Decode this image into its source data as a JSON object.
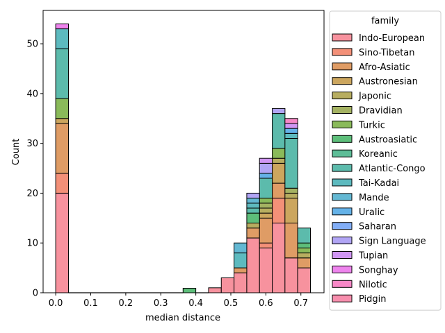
{
  "chart_data": {
    "type": "bar",
    "stacked": true,
    "xlabel": "median distance",
    "ylabel": "Count",
    "xlim": [
      -0.036,
      0.766
    ],
    "ylim": [
      0,
      56.7
    ],
    "xticks": [
      "0.0",
      "0.1",
      "0.2",
      "0.3",
      "0.4",
      "0.5",
      "0.6",
      "0.7"
    ],
    "yticks": [
      "0",
      "10",
      "20",
      "30",
      "40",
      "50"
    ],
    "grid": false,
    "legend": {
      "title": "family",
      "placement": "outside-right"
    },
    "bin_width": 0.0364,
    "bin_starts": [
      0.0,
      0.0364,
      0.0727,
      0.1091,
      0.1455,
      0.1818,
      0.2182,
      0.2545,
      0.2909,
      0.3273,
      0.3636,
      0.4,
      0.4364,
      0.4727,
      0.5091,
      0.5455,
      0.5818,
      0.6182,
      0.6545,
      0.6909
    ],
    "series": [
      {
        "name": "Indo-European",
        "color": "#f7929e",
        "values": [
          20,
          0,
          0,
          0,
          0,
          0,
          0,
          0,
          0,
          0,
          0,
          0,
          1,
          3,
          4,
          11,
          9,
          14,
          7,
          5
        ]
      },
      {
        "name": "Sino-Tibetan",
        "color": "#f39078",
        "values": [
          4,
          0,
          0,
          0,
          0,
          0,
          0,
          0,
          0,
          0,
          0,
          0,
          0,
          0,
          0,
          0,
          1,
          5,
          0,
          0
        ]
      },
      {
        "name": "Afro-Asiatic",
        "color": "#df9c65",
        "values": [
          10,
          0,
          0,
          0,
          0,
          0,
          0,
          0,
          0,
          0,
          0,
          0,
          0,
          0,
          1,
          2,
          5,
          3,
          7,
          2
        ]
      },
      {
        "name": "Austronesian",
        "color": "#cca65e",
        "values": [
          1,
          0,
          0,
          0,
          0,
          0,
          0,
          0,
          0,
          0,
          0,
          0,
          0,
          0,
          0,
          0,
          1,
          4,
          5,
          0
        ]
      },
      {
        "name": "Japonic",
        "color": "#b7ad60",
        "values": [
          0,
          0,
          0,
          0,
          0,
          0,
          0,
          0,
          0,
          0,
          0,
          0,
          0,
          0,
          0,
          1,
          1,
          1,
          1,
          1
        ]
      },
      {
        "name": "Dravidian",
        "color": "#a4b262",
        "values": [
          0,
          0,
          0,
          0,
          0,
          0,
          0,
          0,
          0,
          0,
          0,
          0,
          0,
          0,
          0,
          0,
          1,
          0,
          1,
          0
        ]
      },
      {
        "name": "Turkic",
        "color": "#8aba5a",
        "values": [
          4,
          0,
          0,
          0,
          0,
          0,
          0,
          0,
          0,
          0,
          0,
          0,
          0,
          0,
          0,
          0,
          1,
          2,
          0,
          1
        ]
      },
      {
        "name": "Austroasiatic",
        "color": "#5dbe7a",
        "values": [
          0,
          0,
          0,
          0,
          0,
          0,
          0,
          0,
          0,
          0,
          0.9,
          0,
          0,
          0,
          0,
          2,
          0,
          0,
          0,
          1
        ]
      },
      {
        "name": "Koreanic",
        "color": "#5dbd97",
        "values": [
          0,
          0,
          0,
          0,
          0,
          0,
          0,
          0,
          0,
          0,
          0,
          0,
          0,
          0,
          0,
          0,
          0,
          0,
          0,
          0
        ]
      },
      {
        "name": "Atlantic-Congo",
        "color": "#5cbbac",
        "values": [
          10,
          0,
          0,
          0,
          0,
          0,
          0,
          0,
          0,
          0,
          0,
          0,
          0,
          0,
          0,
          1,
          4,
          7,
          10,
          3
        ]
      },
      {
        "name": "Tai-Kadai",
        "color": "#5dbabf",
        "values": [
          4,
          0,
          0,
          0,
          0,
          0,
          0,
          0,
          0,
          0,
          0,
          0,
          0,
          0,
          3,
          1,
          0,
          0,
          1,
          0
        ]
      },
      {
        "name": "Mande",
        "color": "#63b8d3",
        "values": [
          0,
          0,
          0,
          0,
          0,
          0,
          0,
          0,
          0,
          0,
          0,
          0,
          0,
          0,
          2,
          1,
          0,
          0,
          0,
          0
        ]
      },
      {
        "name": "Uralic",
        "color": "#64b2e8",
        "values": [
          0,
          0,
          0,
          0,
          0,
          0,
          0,
          0,
          0,
          0,
          0,
          0,
          0,
          0,
          0,
          0,
          1,
          0,
          1,
          0
        ]
      },
      {
        "name": "Saharan",
        "color": "#82aef7",
        "values": [
          0,
          0,
          0,
          0,
          0,
          0,
          0,
          0,
          0,
          0,
          0,
          0,
          0,
          0,
          0,
          0,
          0,
          0,
          0,
          0
        ]
      },
      {
        "name": "Sign Language",
        "color": "#b1a5f5",
        "values": [
          0,
          0,
          0,
          0,
          0,
          0,
          0,
          0,
          0,
          0,
          0,
          0,
          0,
          0,
          0,
          1,
          2,
          1,
          0,
          0
        ]
      },
      {
        "name": "Tupian",
        "color": "#d096f4",
        "values": [
          0,
          0,
          0,
          0,
          0,
          0,
          0,
          0,
          0,
          0,
          0,
          0,
          0,
          0,
          0,
          0,
          1,
          0,
          1,
          0
        ]
      },
      {
        "name": "Songhay",
        "color": "#ee84ed",
        "values": [
          1,
          0,
          0,
          0,
          0,
          0,
          0,
          0,
          0,
          0,
          0,
          0,
          0,
          0,
          0,
          0,
          0,
          0,
          0,
          0
        ]
      },
      {
        "name": "Nilotic",
        "color": "#f788c7",
        "values": [
          0,
          0,
          0,
          0,
          0,
          0,
          0,
          0,
          0,
          0,
          0,
          0,
          0,
          0,
          0,
          0,
          0,
          0,
          1,
          0
        ]
      },
      {
        "name": "Pidgin",
        "color": "#f78ead",
        "values": [
          0,
          0,
          0,
          0,
          0,
          0,
          0,
          0,
          0,
          0,
          0,
          0,
          0,
          0,
          0,
          0,
          0,
          0,
          0,
          0
        ]
      }
    ]
  }
}
